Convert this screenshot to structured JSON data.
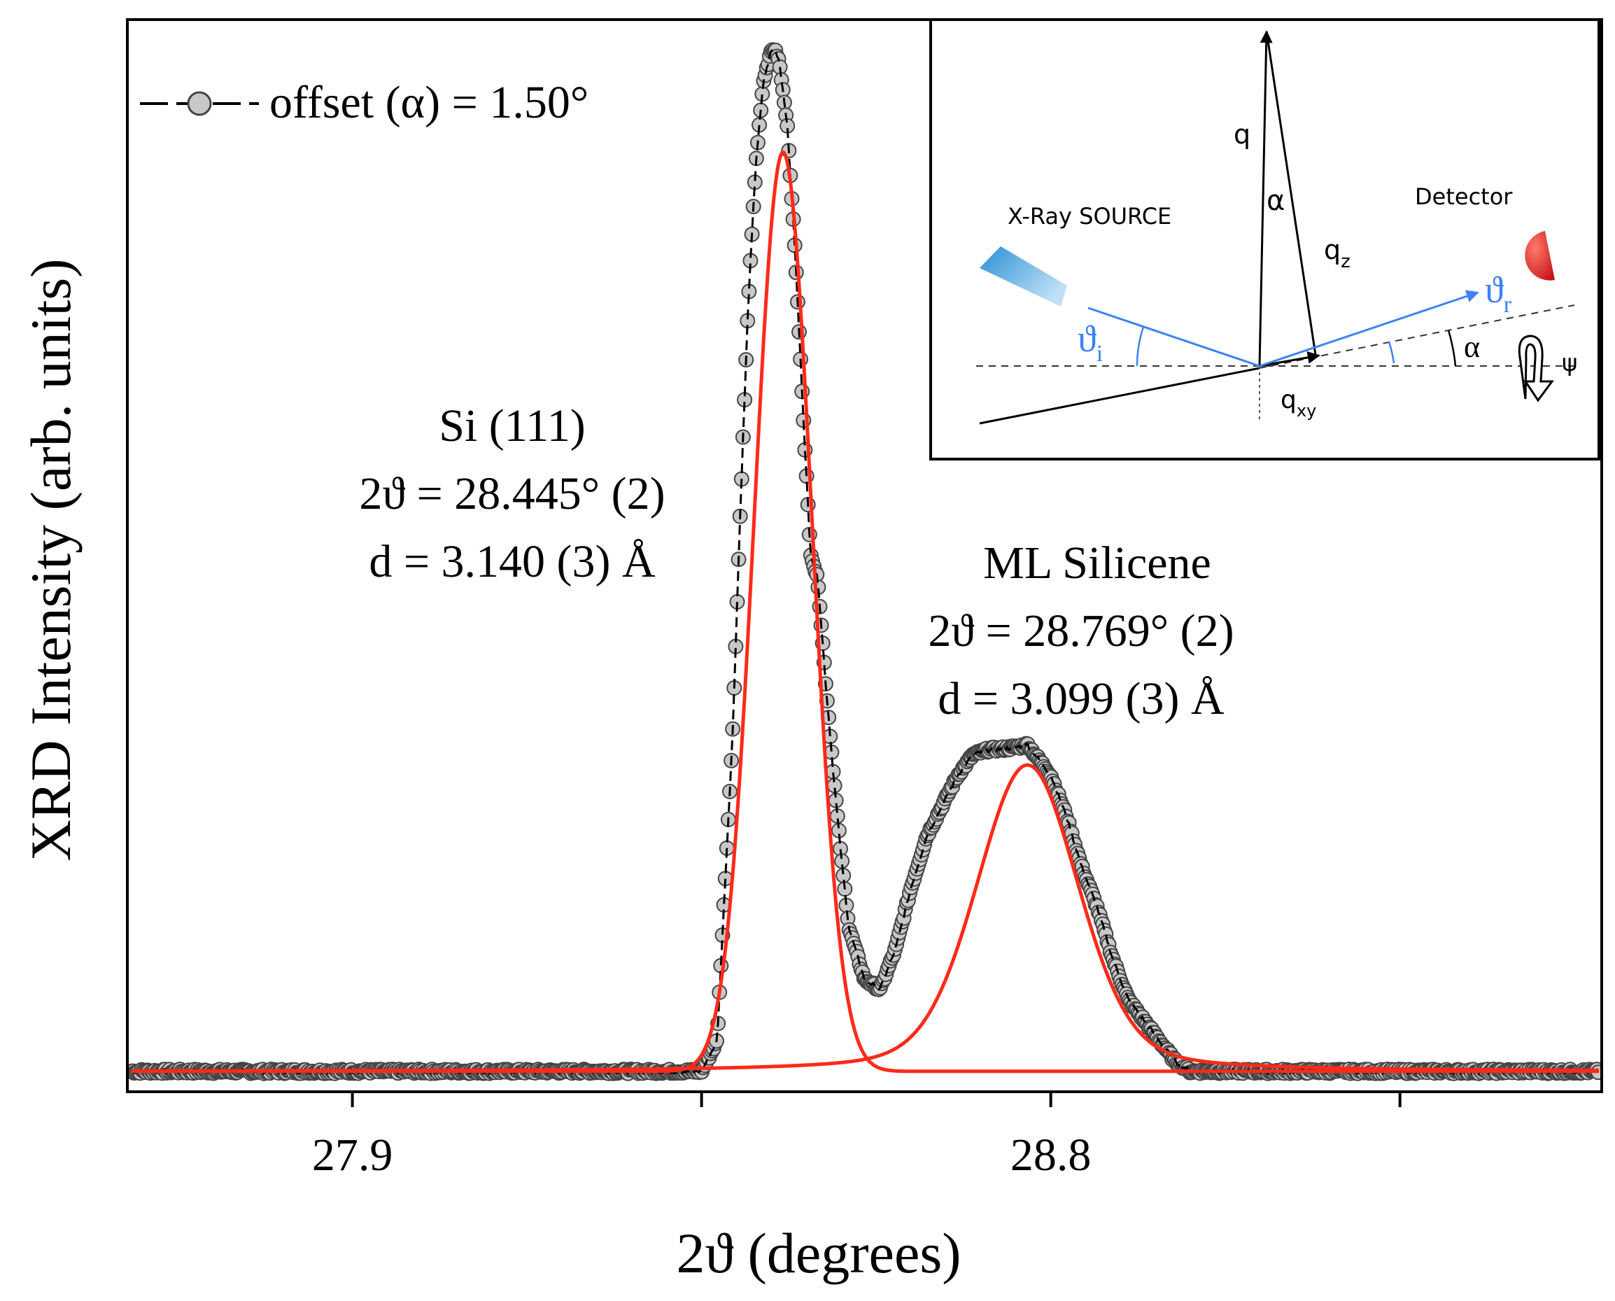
{
  "chart_data": {
    "type": "scatter",
    "xlabel": "2ϑ (degrees)",
    "ylabel": "XRD Intensity (arb. units)",
    "xlim": [
      27.61,
      29.51
    ],
    "ylim": [
      -0.02,
      1.03
    ],
    "xticks_major": [
      27.9,
      28.8
    ],
    "xticks_minor": [
      28.35,
      29.25
    ],
    "xtick_labels": [
      "27.9",
      "28.8"
    ],
    "y_tick_labels": "none",
    "legend": {
      "label": "offset (α) = 1.50°",
      "position": "top-left"
    },
    "colors": {
      "data_marker_fill": "#c8c8c8",
      "data_marker_stroke": "#444444",
      "data_line": "#000000",
      "fit": "#ff2a1a",
      "inset_ray": "#3b82f6",
      "source": "#3a9ed8",
      "detector": "#dd2b2b"
    },
    "series": [
      {
        "name": "offset (α) = 1.50°",
        "style": "markers-with-dashed-line",
        "baseline": 0.0,
        "x": [
          28.35,
          28.37,
          28.39,
          28.4,
          28.41,
          28.42,
          28.43,
          28.44,
          28.445,
          28.45,
          28.46,
          28.47,
          28.48,
          28.49,
          28.5,
          28.51,
          28.52,
          28.53,
          28.54,
          28.56,
          28.58,
          28.6,
          28.62,
          28.64,
          28.66,
          28.68,
          28.7,
          28.72,
          28.74,
          28.76,
          28.77,
          28.78,
          28.8,
          28.82,
          28.84,
          28.86,
          28.88,
          28.9,
          28.92,
          28.94,
          28.96,
          28.98,
          29.0,
          29.02
        ],
        "y": [
          0.0,
          0.03,
          0.33,
          0.55,
          0.75,
          0.89,
          0.97,
          1.0,
          1.0,
          0.99,
          0.93,
          0.81,
          0.66,
          0.51,
          0.48,
          0.38,
          0.29,
          0.21,
          0.14,
          0.09,
          0.08,
          0.12,
          0.18,
          0.23,
          0.26,
          0.29,
          0.31,
          0.315,
          0.316,
          0.318,
          0.32,
          0.31,
          0.29,
          0.25,
          0.2,
          0.16,
          0.11,
          0.07,
          0.05,
          0.03,
          0.01,
          0.0,
          0.0,
          0.0
        ]
      },
      {
        "name": "Si (111) fit",
        "style": "line",
        "function": "gaussian",
        "center": 28.455,
        "amplitude": 0.9,
        "sigma": 0.037
      },
      {
        "name": "ML Silicene fit",
        "style": "line",
        "function": "pseudo-voigt",
        "center": 28.77,
        "amplitude": 0.3,
        "sigma": 0.065,
        "lorentz_gamma": 0.085,
        "lorentz_fraction": 0.25
      }
    ],
    "annotations": [
      {
        "lines": [
          "Si (111)",
          "2ϑ = 28.445° (2)",
          "d = 3.140 (3) Å"
        ],
        "near_peak": "Si (111)"
      },
      {
        "lines": [
          "ML Silicene",
          "2ϑ = 28.769° (2)",
          "d = 3.099 (3) Å"
        ],
        "near_peak": "ML Silicene"
      }
    ],
    "inset": {
      "position": "top-right",
      "labels": {
        "source": "X-Ray SOURCE",
        "detector": "Detector",
        "q": "q",
        "alpha_top": "α",
        "qz_main": "q",
        "qz_sub": "z",
        "theta_i_main": "ϑ",
        "theta_i_sub": "i",
        "theta_r_main": "ϑ",
        "theta_r_sub": "r",
        "alpha_right": "α",
        "psi": "ψ",
        "qxy_main": "q",
        "qxy_sub": "xy"
      }
    }
  }
}
